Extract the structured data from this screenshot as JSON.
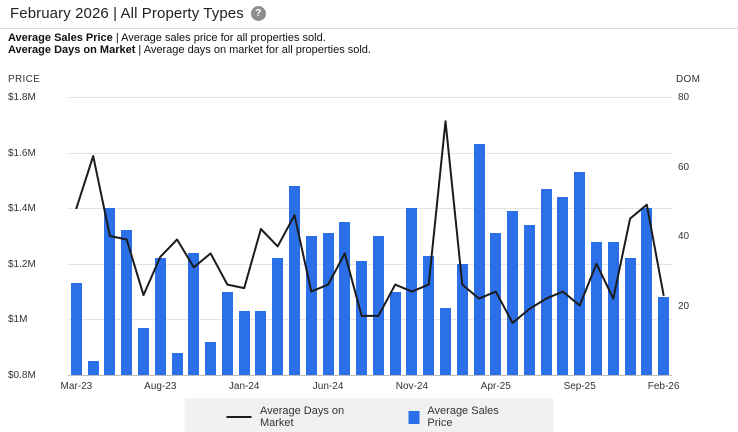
{
  "header": {
    "title": "February 2026 | All Property Types",
    "help_glyph": "?"
  },
  "descriptions": [
    {
      "term": "Average Sales Price",
      "text": " | Average sales price for all properties sold."
    },
    {
      "term": "Average Days on Market",
      "text": " | Average days on market for all properties sold."
    }
  ],
  "chart_data": {
    "type": "bar",
    "subtype": "bar+line dual axis",
    "categories": [
      "Mar-23",
      "Apr-23",
      "May-23",
      "Jun-23",
      "Jul-23",
      "Aug-23",
      "Sep-23",
      "Oct-23",
      "Nov-23",
      "Dec-23",
      "Jan-24",
      "Feb-24",
      "Mar-24",
      "Apr-24",
      "May-24",
      "Jun-24",
      "Jul-24",
      "Aug-24",
      "Sep-24",
      "Oct-24",
      "Nov-24",
      "Dec-24",
      "Jan-25",
      "Feb-25",
      "Mar-25",
      "Apr-25",
      "May-25",
      "Jun-25",
      "Jul-25",
      "Aug-25",
      "Sep-25",
      "Oct-25",
      "Nov-25",
      "Dec-25",
      "Jan-26",
      "Feb-26"
    ],
    "series": [
      {
        "name": "Average Sales Price",
        "render": "bar",
        "axis": "left",
        "unit": "$M",
        "color": "#2b70e8",
        "values": [
          1.13,
          0.85,
          1.4,
          1.32,
          0.97,
          1.22,
          0.88,
          1.24,
          0.92,
          1.1,
          1.03,
          1.03,
          1.22,
          1.48,
          1.3,
          1.31,
          1.35,
          1.21,
          1.3,
          1.1,
          1.4,
          1.23,
          1.04,
          1.2,
          1.63,
          1.31,
          1.39,
          1.34,
          1.47,
          1.44,
          1.53,
          1.28,
          1.28,
          1.22,
          1.4,
          1.08
        ]
      },
      {
        "name": "Average Days on Market",
        "render": "line",
        "axis": "right",
        "unit": "days",
        "color": "#1c1c1c",
        "values": [
          48,
          63,
          40,
          39,
          23,
          34,
          39,
          31,
          35,
          26,
          25,
          42,
          37,
          46,
          24,
          26,
          35,
          17,
          17,
          26,
          24,
          26,
          73,
          26,
          22,
          24,
          15,
          19,
          22,
          24,
          20,
          32,
          22,
          45,
          49,
          23
        ]
      }
    ],
    "left_axis": {
      "title": "PRICE",
      "min": 0.8,
      "max": 1.8,
      "ticks": [
        "$1.8M",
        "$1.6M",
        "$1.4M",
        "$1.2M",
        "$1M",
        "$0.8M"
      ]
    },
    "right_axis": {
      "title": "DOM",
      "min": 0,
      "max": 80,
      "ticks": [
        "80",
        "60",
        "40",
        "20"
      ]
    },
    "x_tick_labels": [
      "Mar-23",
      "Aug-23",
      "Jan-24",
      "Jun-24",
      "Nov-24",
      "Apr-25",
      "Sep-25",
      "Feb-26"
    ],
    "grid": true,
    "legend_position": "bottom"
  },
  "legend": [
    {
      "label": "Average Days on Market",
      "swatch": "line",
      "color": "#1c1c1c"
    },
    {
      "label": "Average Sales Price",
      "swatch": "square",
      "color": "#2b70e8"
    }
  ]
}
